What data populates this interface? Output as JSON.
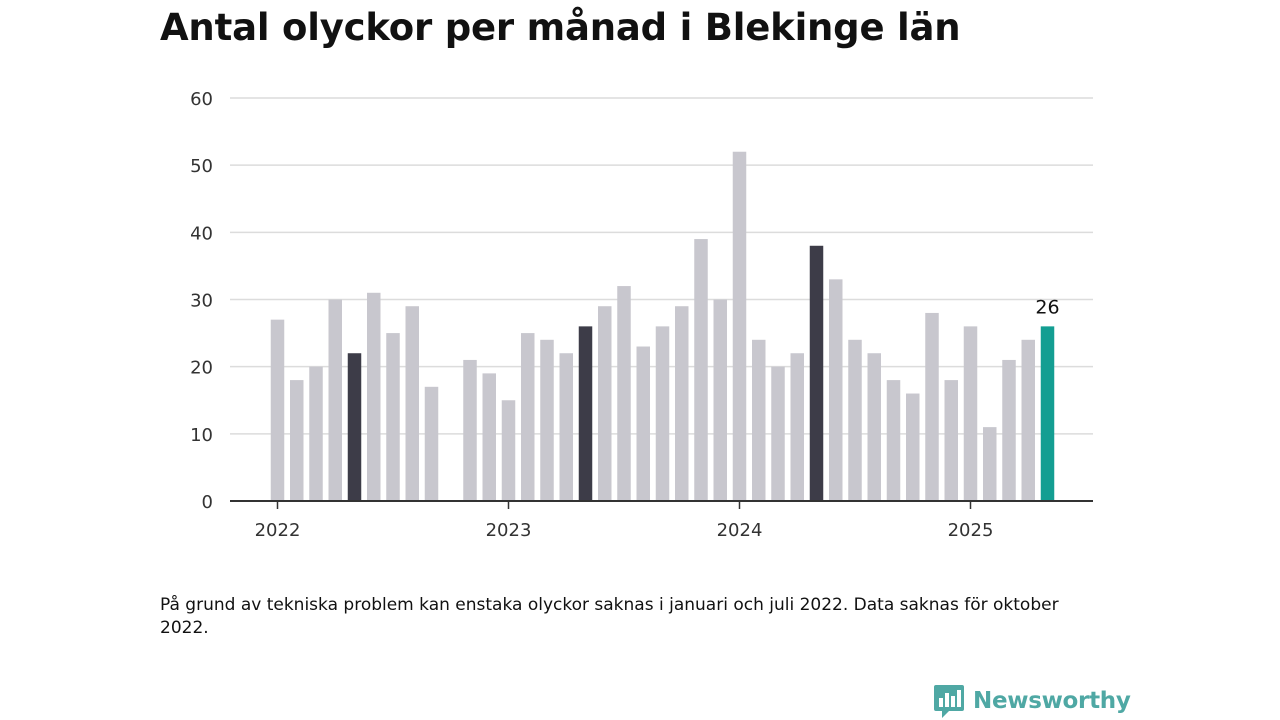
{
  "title": "Antal olyckor per månad i Blekinge län",
  "note": "På grund av tekniska problem kan enstaka olyckor saknas i januari och juli 2022. Data saknas för oktober 2022.",
  "brand": {
    "name": "Newsworthy",
    "icon": "newsworthy-logo-icon",
    "color": "#4fa8a4"
  },
  "colors": {
    "default": "#c8c7ce",
    "highlight": "#3d3c48",
    "latest": "#139e92",
    "grid": "#dcdcdc",
    "axis": "#333333"
  },
  "chart_data": {
    "type": "bar",
    "title": "Antal olyckor per månad i Blekinge län",
    "xlabel": "",
    "ylabel": "",
    "ylim": [
      0,
      60
    ],
    "yticks": [
      "0",
      "10",
      "20",
      "30",
      "40",
      "50",
      "60"
    ],
    "xticks": [
      "2022",
      "2023",
      "2024",
      "2025"
    ],
    "grid": true,
    "categories": [
      "2022-01",
      "2022-02",
      "2022-03",
      "2022-04",
      "2022-05",
      "2022-06",
      "2022-07",
      "2022-08",
      "2022-09",
      "2022-10",
      "2022-11",
      "2022-12",
      "2023-01",
      "2023-02",
      "2023-03",
      "2023-04",
      "2023-05",
      "2023-06",
      "2023-07",
      "2023-08",
      "2023-09",
      "2023-10",
      "2023-11",
      "2023-12",
      "2024-01",
      "2024-02",
      "2024-03",
      "2024-04",
      "2024-05",
      "2024-06",
      "2024-07",
      "2024-08",
      "2024-09",
      "2024-10",
      "2024-11",
      "2024-12",
      "2025-01",
      "2025-02",
      "2025-03",
      "2025-04",
      "2025-05"
    ],
    "values": [
      27,
      18,
      20,
      30,
      22,
      31,
      25,
      29,
      17,
      null,
      21,
      19,
      15,
      25,
      24,
      22,
      26,
      29,
      32,
      23,
      26,
      29,
      39,
      30,
      52,
      24,
      20,
      22,
      38,
      33,
      24,
      22,
      18,
      16,
      28,
      18,
      26,
      11,
      21,
      24,
      26
    ],
    "highlighted": [
      "2022-05",
      "2023-05",
      "2024-05"
    ],
    "latest": "2025-05",
    "value_labels": [
      {
        "category": "2025-05",
        "text": "26"
      }
    ]
  }
}
